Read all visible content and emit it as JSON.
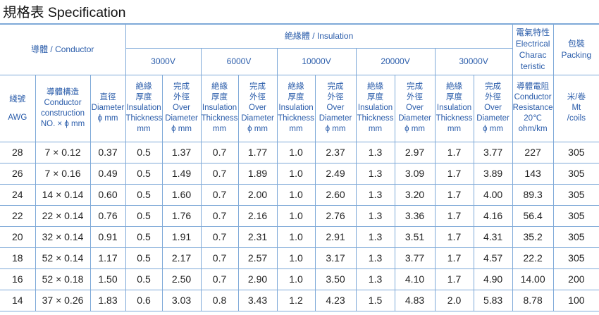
{
  "title": "規格表 Specification",
  "colors": {
    "title_text": "#111111",
    "header_text": "#2a5caa",
    "body_text": "#222222",
    "grid_line": "#7ea9d8"
  },
  "header": {
    "conductor_group": "導體 / Conductor",
    "insulation_group": "絶緣體 / Insulation",
    "electrical_group": [
      "電氣特性",
      "Electrical",
      "Charac",
      "teristic"
    ],
    "packing_group": [
      "包裝",
      "Packing"
    ],
    "voltages": [
      "3000V",
      "6000V",
      "10000V",
      "20000V",
      "30000V"
    ],
    "awg": [
      "綫號",
      "AWG"
    ],
    "construction": [
      "導體構造",
      "Conductor",
      "construction",
      "NO. × ϕ mm"
    ],
    "diameter": [
      "直徑",
      "Diameter",
      "ϕ mm"
    ],
    "thickness": [
      "絶緣",
      "厚度",
      "Insulation",
      "Thickness",
      "mm"
    ],
    "over_diameter": [
      "完成",
      "外徑",
      "Over",
      "Diameter",
      "ϕ mm"
    ],
    "resistance": [
      "導體電阻",
      "Conductor",
      "Resistance",
      "20℃",
      "ohm/km"
    ],
    "coils": [
      "米/卷",
      "Mt",
      "/coils"
    ]
  },
  "rows": [
    [
      "28",
      "7 × 0.12",
      "0.37",
      "0.5",
      "1.37",
      "0.7",
      "1.77",
      "1.0",
      "2.37",
      "1.3",
      "2.97",
      "1.7",
      "3.77",
      "227",
      "305"
    ],
    [
      "26",
      "7 × 0.16",
      "0.49",
      "0.5",
      "1.49",
      "0.7",
      "1.89",
      "1.0",
      "2.49",
      "1.3",
      "3.09",
      "1.7",
      "3.89",
      "143",
      "305"
    ],
    [
      "24",
      "14 × 0.14",
      "0.60",
      "0.5",
      "1.60",
      "0.7",
      "2.00",
      "1.0",
      "2.60",
      "1.3",
      "3.20",
      "1.7",
      "4.00",
      "89.3",
      "305"
    ],
    [
      "22",
      "22 × 0.14",
      "0.76",
      "0.5",
      "1.76",
      "0.7",
      "2.16",
      "1.0",
      "2.76",
      "1.3",
      "3.36",
      "1.7",
      "4.16",
      "56.4",
      "305"
    ],
    [
      "20",
      "32 × 0.14",
      "0.91",
      "0.5",
      "1.91",
      "0.7",
      "2.31",
      "1.0",
      "2.91",
      "1.3",
      "3.51",
      "1.7",
      "4.31",
      "35.2",
      "305"
    ],
    [
      "18",
      "52 × 0.14",
      "1.17",
      "0.5",
      "2.17",
      "0.7",
      "2.57",
      "1.0",
      "3.17",
      "1.3",
      "3.77",
      "1.7",
      "4.57",
      "22.2",
      "305"
    ],
    [
      "16",
      "52 × 0.18",
      "1.50",
      "0.5",
      "2.50",
      "0.7",
      "2.90",
      "1.0",
      "3.50",
      "1.3",
      "4.10",
      "1.7",
      "4.90",
      "14.00",
      "200"
    ],
    [
      "14",
      "37 × 0.26",
      "1.83",
      "0.6",
      "3.03",
      "0.8",
      "3.43",
      "1.2",
      "4.23",
      "1.5",
      "4.83",
      "2.0",
      "5.83",
      "8.78",
      "100"
    ]
  ]
}
